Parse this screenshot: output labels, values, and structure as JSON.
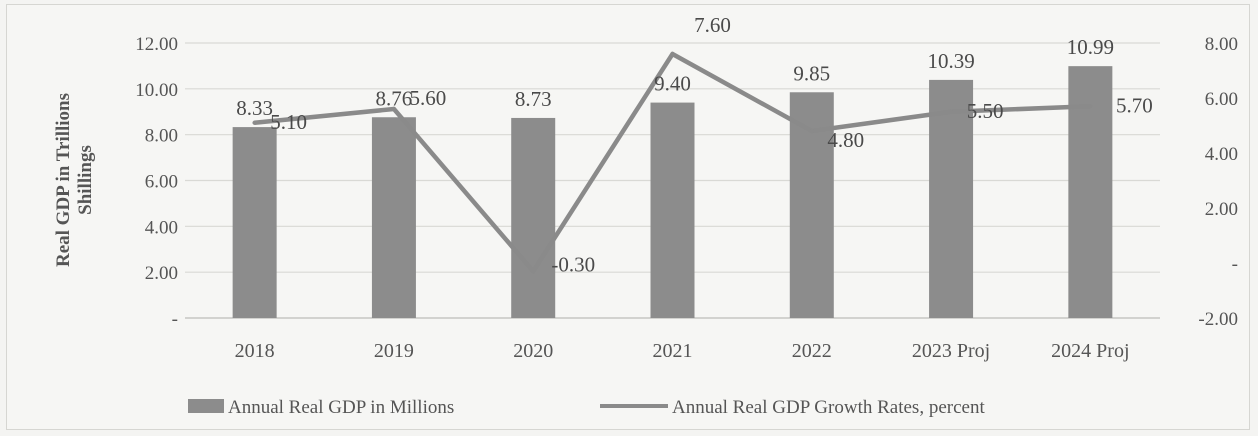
{
  "chart_data": {
    "type": "bar+line",
    "categories": [
      "2018",
      "2019",
      "2020",
      "2021",
      "2022",
      "2023 Proj",
      "2024 Proj"
    ],
    "series": [
      {
        "name": "Annual Real GDP in Millions",
        "type": "bar",
        "axis": "left",
        "values": [
          8.33,
          8.76,
          8.73,
          9.4,
          9.85,
          10.39,
          10.99
        ],
        "labels": [
          "8.33",
          "8.76",
          "8.73",
          "9.40",
          "9.85",
          "10.39",
          "10.99"
        ],
        "color": "#8c8c8c"
      },
      {
        "name": "Annual Real GDP Growth Rates, percent",
        "type": "line",
        "axis": "right",
        "values": [
          5.1,
          5.6,
          -0.3,
          7.6,
          4.8,
          5.5,
          5.7
        ],
        "labels": [
          "5.10",
          "5.60",
          "-0.30",
          "7.60",
          "4.80",
          "5.50",
          "5.70"
        ],
        "color": "#8a8a8a"
      }
    ],
    "ylabel_left": [
      "Real GDP in Trillions",
      "Shillings"
    ],
    "ylim_left": [
      0,
      12
    ],
    "yticks_left": [
      "-",
      "2.00",
      "4.00",
      "6.00",
      "8.00",
      "10.00",
      "12.00"
    ],
    "ylim_right": [
      -2,
      8
    ],
    "yticks_right": [
      "-2.00",
      "-",
      "2.00",
      "4.00",
      "6.00",
      "8.00"
    ],
    "grid": true,
    "legend_position": "bottom"
  }
}
